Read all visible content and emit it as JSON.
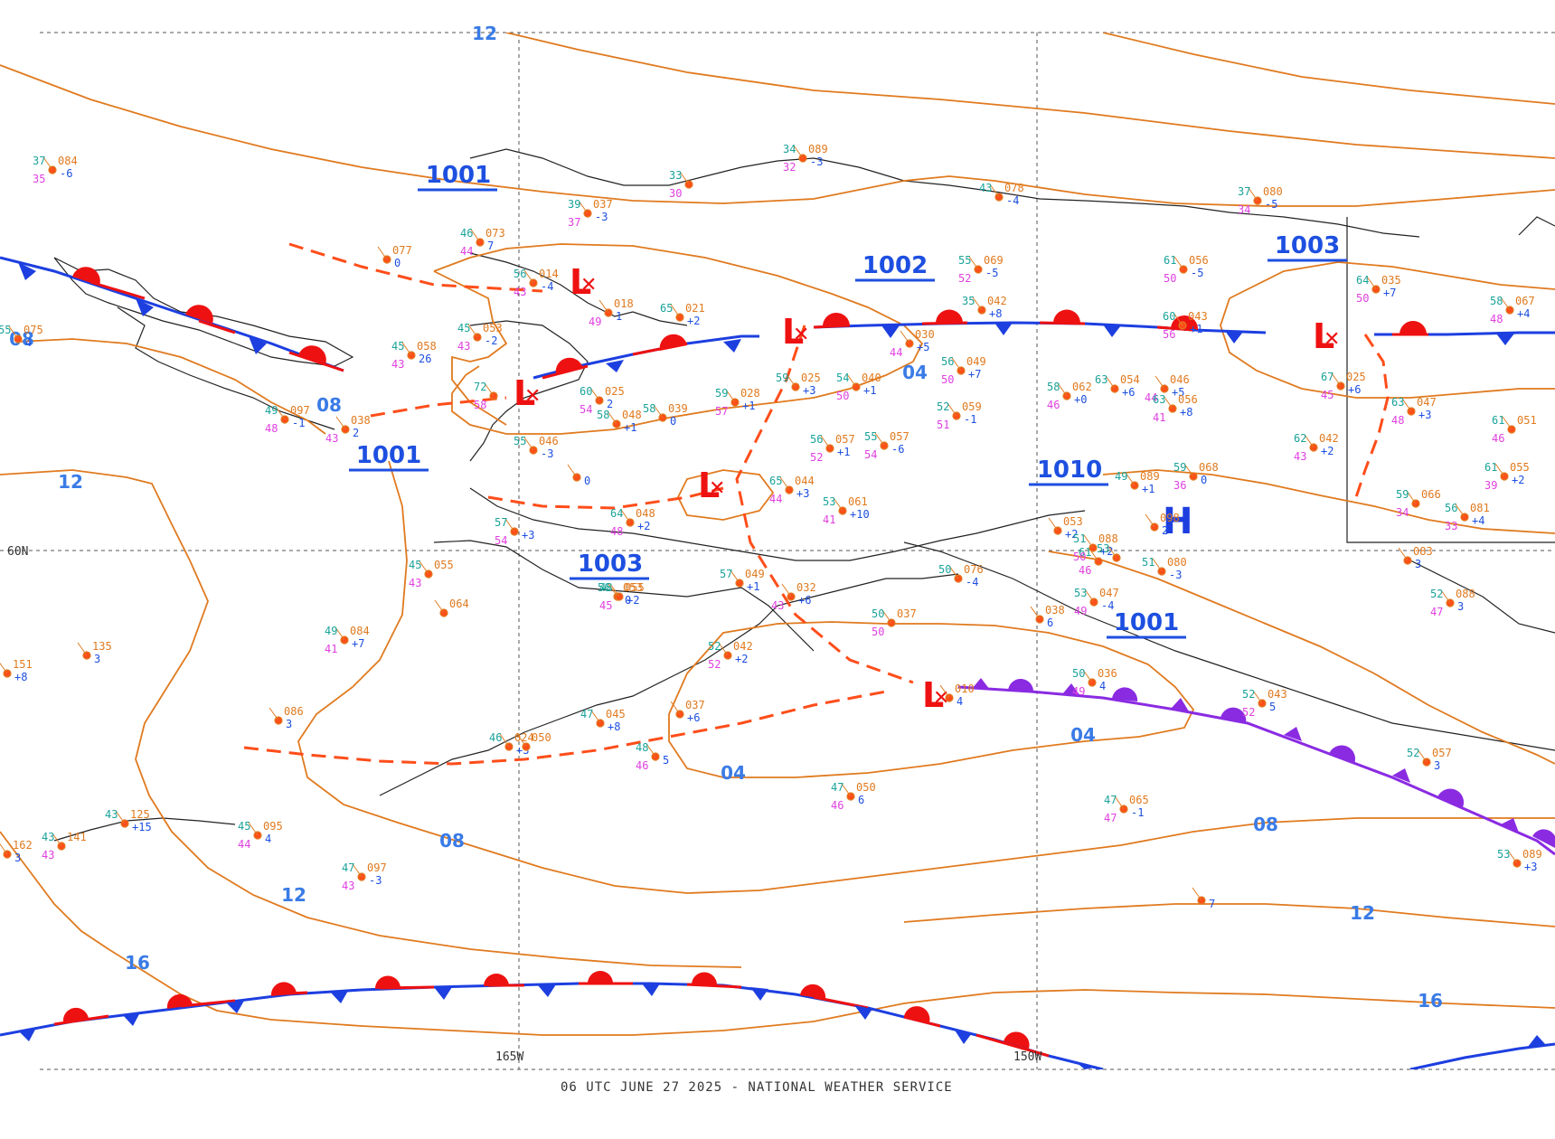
{
  "footer": "06 UTC JUNE 27 2025 - NATIONAL WEATHER SERVICE",
  "axes": {
    "lat_label": "60N",
    "lon_labels": [
      "165W",
      "150W"
    ]
  },
  "colors": {
    "isobar": "#e07a1f",
    "trough": "#ff4d1a",
    "cold_front": "#1d3fe0",
    "warm_front": "#ee1111",
    "occluded_front": "#8a2be2",
    "isobar_label": "#3a7be6",
    "coast": "#222222"
  },
  "centers": {
    "lows": [
      "L",
      "L",
      "L",
      "L",
      "L",
      "L"
    ],
    "low_pressures": [
      "1001",
      "1001",
      "1003",
      "1002",
      "1001"
    ],
    "high": "H",
    "high_pressure": "1010",
    "low_1003_right": "1003"
  },
  "isobar_labels": [
    "12",
    "08",
    "08",
    "12",
    "08",
    "12",
    "16",
    "04",
    "04",
    "04",
    "08",
    "12",
    "16"
  ],
  "stations": [
    {
      "t": "37",
      "p": "084",
      "d": "35",
      "n": "-6"
    },
    {
      "t": "46",
      "p": "073",
      "d": "44",
      "n": "7"
    },
    {
      "t": "39",
      "p": "037",
      "d": "37",
      "n": "-3"
    },
    {
      "t": "33",
      "p": "",
      "d": "30",
      "n": ""
    },
    {
      "t": "34",
      "p": "089",
      "d": "32",
      "n": "-3"
    },
    {
      "t": "43",
      "p": "078",
      "d": "",
      "n": "-4"
    },
    {
      "t": "37",
      "p": "080",
      "d": "34",
      "n": "-5"
    },
    {
      "t": "55",
      "p": "075",
      "d": "",
      "n": "4"
    },
    {
      "t": "",
      "p": "077",
      "d": "",
      "n": "0"
    },
    {
      "t": "56",
      "p": "014",
      "d": "43",
      "n": "-4"
    },
    {
      "t": "45",
      "p": "053",
      "d": "43",
      "n": "-2"
    },
    {
      "t": "45",
      "p": "058",
      "d": "43",
      "n": "26"
    },
    {
      "t": "",
      "p": "018",
      "d": "49",
      "n": "1"
    },
    {
      "t": "65",
      "p": "021",
      "d": "",
      "n": "+2"
    },
    {
      "t": "55",
      "p": "069",
      "d": "52",
      "n": "-5"
    },
    {
      "t": "61",
      "p": "056",
      "d": "50",
      "n": "-5"
    },
    {
      "t": "35",
      "p": "042",
      "d": "",
      "n": "+8"
    },
    {
      "t": "60",
      "p": "043",
      "d": "56",
      "n": "+1"
    },
    {
      "t": "49",
      "p": "097",
      "d": "48",
      "n": "-1"
    },
    {
      "t": "",
      "p": "038",
      "d": "43",
      "n": "2"
    },
    {
      "t": "72",
      "p": "",
      "d": "58",
      "n": ""
    },
    {
      "t": "60",
      "p": "025",
      "d": "54",
      "n": "2"
    },
    {
      "t": "58",
      "p": "039",
      "d": "",
      "n": "0"
    },
    {
      "t": "59",
      "p": "028",
      "d": "57",
      "n": "+1"
    },
    {
      "t": "59",
      "p": "025",
      "d": "",
      "n": "+3"
    },
    {
      "t": "54",
      "p": "040",
      "d": "50",
      "n": "+1"
    },
    {
      "t": "",
      "p": "030",
      "d": "44",
      "n": "+5"
    },
    {
      "t": "56",
      "p": "049",
      "d": "50",
      "n": "+7"
    },
    {
      "t": "52",
      "p": "059",
      "d": "51",
      "n": "-1"
    },
    {
      "t": "58",
      "p": "062",
      "d": "46",
      "n": "+0"
    },
    {
      "t": "63",
      "p": "054",
      "d": "",
      "n": "+6"
    },
    {
      "t": "",
      "p": "046",
      "d": "44",
      "n": "+5"
    },
    {
      "t": "63",
      "p": "056",
      "d": "41",
      "n": "+8"
    },
    {
      "t": "67",
      "p": "025",
      "d": "45",
      "n": "+6"
    },
    {
      "t": "63",
      "p": "047",
      "d": "48",
      "n": "+3"
    },
    {
      "t": "64",
      "p": "035",
      "d": "50",
      "n": "+7"
    },
    {
      "t": "58",
      "p": "067",
      "d": "48",
      "n": "+4"
    },
    {
      "t": "58",
      "p": "048",
      "d": "",
      "n": "+1"
    },
    {
      "t": "55",
      "p": "046",
      "d": "",
      "n": "-3"
    },
    {
      "t": "",
      "p": "",
      "d": "",
      "n": "0"
    },
    {
      "t": "56",
      "p": "057",
      "d": "52",
      "n": "+1"
    },
    {
      "t": "55",
      "p": "057",
      "d": "54",
      "n": "-6"
    },
    {
      "t": "65",
      "p": "044",
      "d": "44",
      "n": "+3"
    },
    {
      "t": "53",
      "p": "061",
      "d": "41",
      "n": "+10"
    },
    {
      "t": "62",
      "p": "042",
      "d": "43",
      "n": "+2"
    },
    {
      "t": "61",
      "p": "051",
      "d": "46",
      "n": ""
    },
    {
      "t": "61",
      "p": "055",
      "d": "39",
      "n": "+2"
    },
    {
      "t": "49",
      "p": "089",
      "d": "",
      "n": "+1"
    },
    {
      "t": "59",
      "p": "068",
      "d": "36",
      "n": "0"
    },
    {
      "t": "59",
      "p": "066",
      "d": "34",
      "n": ""
    },
    {
      "t": "56",
      "p": "081",
      "d": "33",
      "n": "+4"
    },
    {
      "t": "64",
      "p": "048",
      "d": "48",
      "n": "+2"
    },
    {
      "t": "57",
      "p": "",
      "d": "54",
      "n": "+3"
    },
    {
      "t": "45",
      "p": "055",
      "d": "43",
      "n": ""
    },
    {
      "t": "",
      "p": "064",
      "d": "",
      "n": ""
    },
    {
      "t": "56",
      "p": "053",
      "d": "",
      "n": "0"
    },
    {
      "t": "57",
      "p": "049",
      "d": "",
      "n": "+1"
    },
    {
      "t": "48",
      "p": "055",
      "d": "45",
      "n": "+2"
    },
    {
      "t": "",
      "p": "032",
      "d": "43",
      "n": "+6"
    },
    {
      "t": "",
      "p": "135",
      "d": "",
      "n": "3"
    },
    {
      "t": "49",
      "p": "084",
      "d": "41",
      "n": "+7"
    },
    {
      "t": "",
      "p": "151",
      "d": "6",
      "n": "+8"
    },
    {
      "t": "53",
      "p": "047",
      "d": "49",
      "n": "-4"
    },
    {
      "t": "51",
      "p": "080",
      "d": "",
      "n": "-3"
    },
    {
      "t": "52",
      "p": "088",
      "d": "47",
      "n": "3"
    },
    {
      "t": "",
      "p": "038",
      "d": "",
      "n": "6"
    },
    {
      "t": "50",
      "p": "037",
      "d": "50",
      "n": ""
    },
    {
      "t": "52",
      "p": "042",
      "d": "52",
      "n": "+2"
    },
    {
      "t": "50",
      "p": "036",
      "d": "49",
      "n": "4"
    },
    {
      "t": "52",
      "p": "043",
      "d": "52",
      "n": "5"
    },
    {
      "t": "52",
      "p": "057",
      "d": "",
      "n": "3"
    },
    {
      "t": "",
      "p": "086",
      "d": "",
      "n": "3"
    },
    {
      "t": "47",
      "p": "045",
      "d": "",
      "n": "+8"
    },
    {
      "t": "",
      "p": "037",
      "d": "",
      "n": "+6"
    },
    {
      "t": "48",
      "p": "",
      "d": "46",
      "n": "5"
    },
    {
      "t": "46",
      "p": "024",
      "d": "",
      "n": "+3"
    },
    {
      "t": "",
      "p": "050",
      "d": "",
      "n": ""
    },
    {
      "t": "47",
      "p": "050",
      "d": "46",
      "n": "6"
    },
    {
      "t": "47",
      "p": "065",
      "d": "47",
      "n": "-1"
    },
    {
      "t": "43",
      "p": "125",
      "d": "",
      "n": "+15"
    },
    {
      "t": "43",
      "p": "141",
      "d": "43",
      "n": ""
    },
    {
      "t": "45",
      "p": "095",
      "d": "44",
      "n": "4"
    },
    {
      "t": "47",
      "p": "097",
      "d": "43",
      "n": "-3"
    },
    {
      "t": "",
      "p": "162",
      "d": "",
      "n": "3"
    },
    {
      "t": "",
      "p": "",
      "d": "",
      "n": "7"
    },
    {
      "t": "53",
      "p": "089",
      "d": "",
      "n": "+3"
    },
    {
      "t": "",
      "p": "010",
      "d": "",
      "n": "4"
    },
    {
      "t": "",
      "p": "083",
      "d": "",
      "n": "3"
    },
    {
      "t": "50",
      "p": "076",
      "d": "",
      "n": "-4"
    },
    {
      "t": "61",
      "p": "",
      "d": "46",
      "n": ""
    },
    {
      "t": "",
      "p": "053",
      "d": "",
      "n": "+2"
    },
    {
      "t": "51",
      "p": "088",
      "d": "50",
      "n": "+2"
    },
    {
      "t": "53",
      "p": "",
      "d": "",
      "n": ""
    },
    {
      "t": "",
      "p": "098",
      "d": "",
      "n": "2"
    }
  ]
}
